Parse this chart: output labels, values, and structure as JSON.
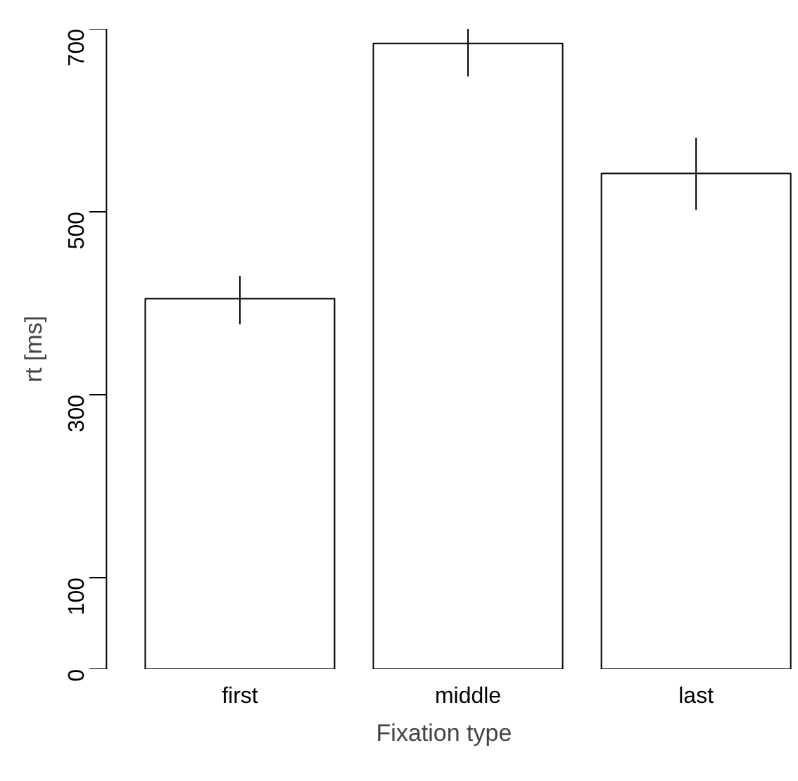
{
  "chart_data": {
    "type": "bar",
    "xlabel": "Fixation type",
    "ylabel": "rt [ms]",
    "categories": [
      "first",
      "middle",
      "last"
    ],
    "values": [
      405,
      684,
      542
    ],
    "color": "#ffffff",
    "errors": [
      [
        377,
        430
      ],
      [
        648,
        700
      ],
      [
        502,
        581
      ]
    ],
    "ylim": [
      0,
      700
    ],
    "yticks": [
      0,
      100,
      300,
      500,
      700
    ],
    "grid": false
  }
}
